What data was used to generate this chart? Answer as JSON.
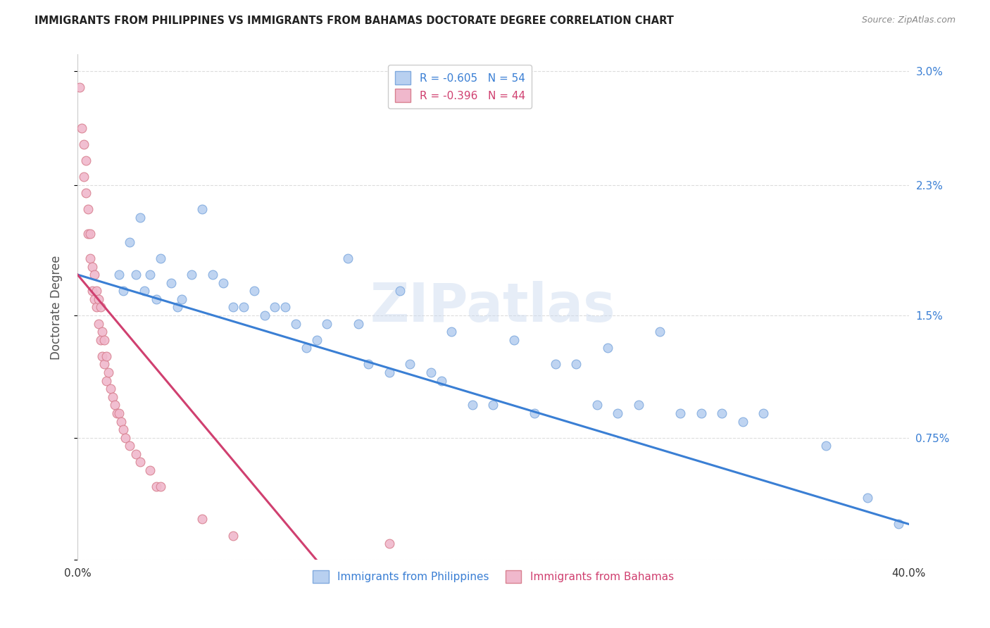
{
  "title": "IMMIGRANTS FROM PHILIPPINES VS IMMIGRANTS FROM BAHAMAS DOCTORATE DEGREE CORRELATION CHART",
  "source": "Source: ZipAtlas.com",
  "ylabel": "Doctorate Degree",
  "xlim": [
    0.0,
    0.4
  ],
  "ylim": [
    0.0,
    0.031
  ],
  "legend_entries": [
    {
      "label": "R = -0.605   N = 54",
      "color": "#aec6f0"
    },
    {
      "label": "R = -0.396   N = 44",
      "color": "#f0b8c8"
    }
  ],
  "legend_bottom": [
    {
      "label": "Immigrants from Philippines",
      "color": "#aec6f0"
    },
    {
      "label": "Immigrants from Bahamas",
      "color": "#f0b8c8"
    }
  ],
  "watermark": "ZIPatlas",
  "blue_scatter_x": [
    0.02,
    0.022,
    0.025,
    0.028,
    0.03,
    0.032,
    0.035,
    0.038,
    0.04,
    0.045,
    0.048,
    0.05,
    0.055,
    0.06,
    0.065,
    0.07,
    0.075,
    0.08,
    0.085,
    0.09,
    0.095,
    0.1,
    0.105,
    0.11,
    0.115,
    0.12,
    0.13,
    0.135,
    0.14,
    0.15,
    0.155,
    0.16,
    0.17,
    0.175,
    0.18,
    0.19,
    0.2,
    0.21,
    0.22,
    0.23,
    0.24,
    0.25,
    0.255,
    0.26,
    0.27,
    0.28,
    0.29,
    0.3,
    0.31,
    0.32,
    0.33,
    0.36,
    0.38,
    0.395
  ],
  "blue_scatter_y": [
    0.0175,
    0.0165,
    0.0195,
    0.0175,
    0.021,
    0.0165,
    0.0175,
    0.016,
    0.0185,
    0.017,
    0.0155,
    0.016,
    0.0175,
    0.0215,
    0.0175,
    0.017,
    0.0155,
    0.0155,
    0.0165,
    0.015,
    0.0155,
    0.0155,
    0.0145,
    0.013,
    0.0135,
    0.0145,
    0.0185,
    0.0145,
    0.012,
    0.0115,
    0.0165,
    0.012,
    0.0115,
    0.011,
    0.014,
    0.0095,
    0.0095,
    0.0135,
    0.009,
    0.012,
    0.012,
    0.0095,
    0.013,
    0.009,
    0.0095,
    0.014,
    0.009,
    0.009,
    0.009,
    0.0085,
    0.009,
    0.007,
    0.0038,
    0.0022
  ],
  "pink_scatter_x": [
    0.001,
    0.002,
    0.003,
    0.003,
    0.004,
    0.004,
    0.005,
    0.005,
    0.006,
    0.006,
    0.007,
    0.007,
    0.008,
    0.008,
    0.009,
    0.009,
    0.01,
    0.01,
    0.011,
    0.011,
    0.012,
    0.012,
    0.013,
    0.013,
    0.014,
    0.014,
    0.015,
    0.016,
    0.017,
    0.018,
    0.019,
    0.02,
    0.021,
    0.022,
    0.023,
    0.025,
    0.028,
    0.03,
    0.035,
    0.038,
    0.04,
    0.06,
    0.075,
    0.15
  ],
  "pink_scatter_y": [
    0.029,
    0.0265,
    0.0255,
    0.0235,
    0.0245,
    0.0225,
    0.0215,
    0.02,
    0.02,
    0.0185,
    0.018,
    0.0165,
    0.0175,
    0.016,
    0.0165,
    0.0155,
    0.016,
    0.0145,
    0.0155,
    0.0135,
    0.014,
    0.0125,
    0.0135,
    0.012,
    0.0125,
    0.011,
    0.0115,
    0.0105,
    0.01,
    0.0095,
    0.009,
    0.009,
    0.0085,
    0.008,
    0.0075,
    0.007,
    0.0065,
    0.006,
    0.0055,
    0.0045,
    0.0045,
    0.0025,
    0.0015,
    0.001
  ],
  "blue_line_x": [
    0.0,
    0.4
  ],
  "blue_line_y": [
    0.0175,
    0.0022
  ],
  "pink_line_x": [
    0.0,
    0.115
  ],
  "pink_line_y": [
    0.0175,
    0.0
  ],
  "ytick_positions": [
    0.0,
    0.0075,
    0.015,
    0.023,
    0.03
  ],
  "ytick_labels": [
    "",
    "0.75%",
    "1.5%",
    "2.3%",
    "3.0%"
  ],
  "xtick_positions": [
    0.0,
    0.1,
    0.2,
    0.3,
    0.4
  ],
  "xtick_labels": [
    "0.0%",
    "",
    "",
    "",
    "40.0%"
  ],
  "grid_color": "#dddddd",
  "scatter_size": 85,
  "blue_color": "#b8d0f0",
  "pink_color": "#f0b8cc",
  "blue_edge": "#80aade",
  "pink_edge": "#d88090",
  "line_blue": "#3a7fd4",
  "line_pink": "#d04070",
  "title_color": "#222222",
  "source_color": "#888888",
  "ylabel_color": "#555555",
  "watermark_color": "#c8d8ee",
  "right_tick_color": "#3a7fd4"
}
